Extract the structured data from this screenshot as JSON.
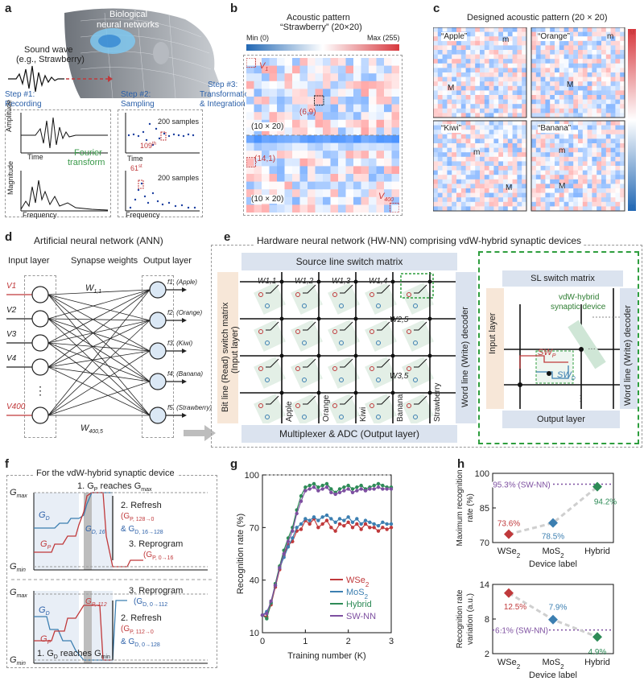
{
  "panels": {
    "a": "a",
    "b": "b",
    "c": "c",
    "d": "d",
    "e": "e",
    "f": "f",
    "g": "g",
    "h": "h"
  },
  "a": {
    "bio": "Biological",
    "bio2": "neural networks",
    "sound1": "Sound wave",
    "sound2": "(e.g., Strawberry)",
    "step1a": "Step #1:",
    "step1b": "Recording",
    "step2a": "Step #2:",
    "step2b": "Sampling",
    "step3a": "Step #3:",
    "step3b": "Transformation",
    "step3c": "& Integration",
    "amp": "Amplitude",
    "time": "Time",
    "mag": "Magnitude",
    "freq": "Frequency",
    "fourier1": "Fourier",
    "fourier2": "transform",
    "samples": "200 samples",
    "s109": "109",
    "s109sup": "th",
    "s61": "61",
    "s61sup": "st"
  },
  "b": {
    "title1": "Acoustic pattern",
    "title2": "“Strawberry” (20×20)",
    "min": "Min (0)",
    "max": "Max (255)",
    "v1": "V",
    "v1sub": "1",
    "p69": "(6,9)",
    "p141": "(14,1)",
    "size1": "(10 × 20)",
    "size2": "(10 × 20)",
    "v400": "V",
    "v400sub": "400"
  },
  "c": {
    "title": "Designed acoustic pattern (20 × 20)",
    "apple": "“Apple”",
    "orange": "“Orange”",
    "kiwi": "“Kiwi”",
    "banana": "“Banana”",
    "M": "M",
    "m": "m"
  },
  "d": {
    "title": "Artificial neural network (ANN)",
    "input": "Input layer",
    "syn": "Synapse weights",
    "output": "Output layer",
    "inputs": [
      "V1",
      "V2",
      "V3",
      "V4",
      "⋮",
      "V400"
    ],
    "w11": "W",
    "w11sub": "1,1",
    "w4005": "W",
    "w4005sub": "400,5",
    "outputs": [
      "f1, (Apple)",
      "f2, (Orange)",
      "f3, (Kiwi)",
      "f4, (Banana)",
      "f5, (Strawberry)"
    ]
  },
  "e": {
    "title": "Hardware neural network (HW-NN) comprising vdW-hybrid synaptic devices",
    "source": "Source line switch matrix",
    "bitline": "Bit line (Read) switch matrix",
    "bitline2": "(Input layer)",
    "wordline": "Word line (Write) decoder",
    "mux": "Multiplexer & ADC (Output layer)",
    "slswitch": "SL switch matrix",
    "vdw1": "vdW-hybrid",
    "vdw2": "synaptic device",
    "inputlayer": "Input layer",
    "outputlayer": "Output layer",
    "wordline2": "Word line (Write) decoder",
    "swp": "SW",
    "swpsub": "P",
    "swd": "SW",
    "swdsub": "D",
    "cols": [
      "Apple",
      "Orange",
      "Kiwi",
      "Banana",
      "Strawberry"
    ],
    "weights": [
      "W1,1",
      "W1,2",
      "W1,3",
      "W1,4",
      "W2,5",
      "W3,5"
    ]
  },
  "f": {
    "title": "For the vdW-hybrid synaptic device",
    "gmax": "G",
    "gmin": "G",
    "max": "max",
    "min": "min",
    "s1top": "1. G",
    "s1topsub": "P",
    "s1topend": " reaches G",
    "s1topmax": "max",
    "s2": "2. Refresh",
    "s2a": "(G",
    "s2asub": "P, 128→0",
    "s2b": "& G",
    "s2bsub": "D, 16→128",
    "s3": "3. Reprogram",
    "s3a": "(G",
    "s3asub": "P, 0→16",
    "gd": "G",
    "gdsub": "D",
    "gp": "G",
    "gpsub": "P",
    "gd16": "G",
    "gd16sub": "D, 16",
    "gp112": "G",
    "gp112sub": "P, 112",
    "b3": "3. Reprogram",
    "b3a": "(G",
    "b3asub": "D, 0→112",
    "b2": "2. Refresh",
    "b2a": "(G",
    "b2asub": "P, 112→0",
    "b2b": "& G",
    "b2bsub": "D, 0→128",
    "b1": "1. G",
    "b1sub": "D",
    "b1end": " reaches G",
    "b1min": "min"
  },
  "chart_data": [
    {
      "type": "line",
      "title": "",
      "xlabel": "Training number (K)",
      "ylabel": "Recognition rate (%)",
      "xlim": [
        0,
        3
      ],
      "ylim": [
        10,
        100
      ],
      "xticks": [
        0,
        1,
        2,
        3
      ],
      "yticks": [
        10,
        40,
        70,
        100
      ],
      "yticklabels": [
        "10",
        "40",
        "70",
        "100"
      ],
      "reference_line": 100,
      "series": [
        {
          "name": "WSe2",
          "color": "#c0393b",
          "x": [
            0,
            0.1,
            0.2,
            0.3,
            0.4,
            0.5,
            0.6,
            0.7,
            0.8,
            0.9,
            1.0,
            1.1,
            1.2,
            1.3,
            1.4,
            1.5,
            1.6,
            1.7,
            1.8,
            1.9,
            2.0,
            2.1,
            2.2,
            2.3,
            2.4,
            2.5,
            2.6,
            2.7,
            2.8,
            2.9,
            3.0
          ],
          "values": [
            20,
            19,
            26,
            36,
            46,
            54,
            60,
            62,
            68,
            69,
            74,
            72,
            75,
            70,
            72,
            74,
            70,
            68,
            72,
            71,
            73,
            70,
            72,
            69,
            72,
            70,
            70,
            68,
            70,
            69,
            70
          ]
        },
        {
          "name": "MoS2",
          "color": "#3c7fb1",
          "x": [
            0,
            0.1,
            0.2,
            0.3,
            0.4,
            0.5,
            0.6,
            0.7,
            0.8,
            0.9,
            1.0,
            1.1,
            1.2,
            1.3,
            1.4,
            1.5,
            1.6,
            1.7,
            1.8,
            1.9,
            2.0,
            2.1,
            2.2,
            2.3,
            2.4,
            2.5,
            2.6,
            2.7,
            2.8,
            2.9,
            3.0
          ],
          "values": [
            20,
            22,
            27,
            37,
            47,
            53,
            59,
            64,
            70,
            72,
            75,
            74,
            76,
            74,
            76,
            77,
            75,
            73,
            75,
            74,
            76,
            73,
            75,
            72,
            74,
            73,
            72,
            71,
            73,
            72,
            72
          ]
        },
        {
          "name": "Hybrid",
          "color": "#2e8b57",
          "x": [
            0,
            0.1,
            0.2,
            0.3,
            0.4,
            0.5,
            0.6,
            0.7,
            0.8,
            0.9,
            1.0,
            1.1,
            1.2,
            1.3,
            1.4,
            1.5,
            1.6,
            1.7,
            1.8,
            1.9,
            2.0,
            2.1,
            2.2,
            2.3,
            2.4,
            2.5,
            2.6,
            2.7,
            2.8,
            2.9,
            3.0
          ],
          "values": [
            20,
            18,
            27,
            38,
            48,
            57,
            64,
            70,
            80,
            88,
            93,
            94,
            95,
            93,
            94,
            95,
            92,
            90,
            92,
            93,
            94,
            92,
            93,
            94,
            92,
            93,
            94,
            95,
            94,
            93,
            93
          ]
        },
        {
          "name": "SW-NN",
          "color": "#7d4fa0",
          "x": [
            0,
            0.1,
            0.2,
            0.3,
            0.4,
            0.5,
            0.6,
            0.7,
            0.8,
            0.9,
            1.0,
            1.1,
            1.2,
            1.3,
            1.4,
            1.5,
            1.6,
            1.7,
            1.8,
            1.9,
            2.0,
            2.1,
            2.2,
            2.3,
            2.4,
            2.5,
            2.6,
            2.7,
            2.8,
            2.9,
            3.0
          ],
          "values": [
            20,
            21,
            28,
            37,
            47,
            55,
            62,
            68,
            78,
            85,
            91,
            92,
            93,
            91,
            92,
            93,
            90,
            89,
            90,
            91,
            92,
            90,
            91,
            92,
            91,
            92,
            92,
            93,
            92,
            92,
            92
          ]
        }
      ]
    },
    {
      "type": "scatter",
      "title": "",
      "xlabel": "Device label",
      "ylabel": "Maximum recognition rate (%)",
      "categories": [
        "WSe2",
        "MoS2",
        "Hybrid"
      ],
      "values": [
        73.6,
        78.5,
        94.2
      ],
      "labels": [
        "73.6%",
        "78.5%",
        "94.2%"
      ],
      "colors": [
        "#c0393b",
        "#3c7fb1",
        "#2e8b57"
      ],
      "reference": 95.3,
      "reference_label": "95.3% (SW-NN)",
      "ylim": [
        70,
        100
      ],
      "yticks": [
        70,
        85,
        100
      ]
    },
    {
      "type": "scatter",
      "title": "",
      "xlabel": "Device label",
      "ylabel": "Recognition rate variation (a.u.)",
      "categories": [
        "WSe2",
        "MoS2",
        "Hybrid"
      ],
      "values": [
        12.5,
        7.9,
        4.9
      ],
      "labels": [
        "12.5%",
        "7.9%",
        "4.9%"
      ],
      "colors": [
        "#c0393b",
        "#3c7fb1",
        "#2e8b57"
      ],
      "reference": 6.1,
      "reference_label": "6.1% (SW-NN)",
      "ylim": [
        2,
        14
      ],
      "yticks": [
        2,
        8,
        14
      ]
    }
  ]
}
